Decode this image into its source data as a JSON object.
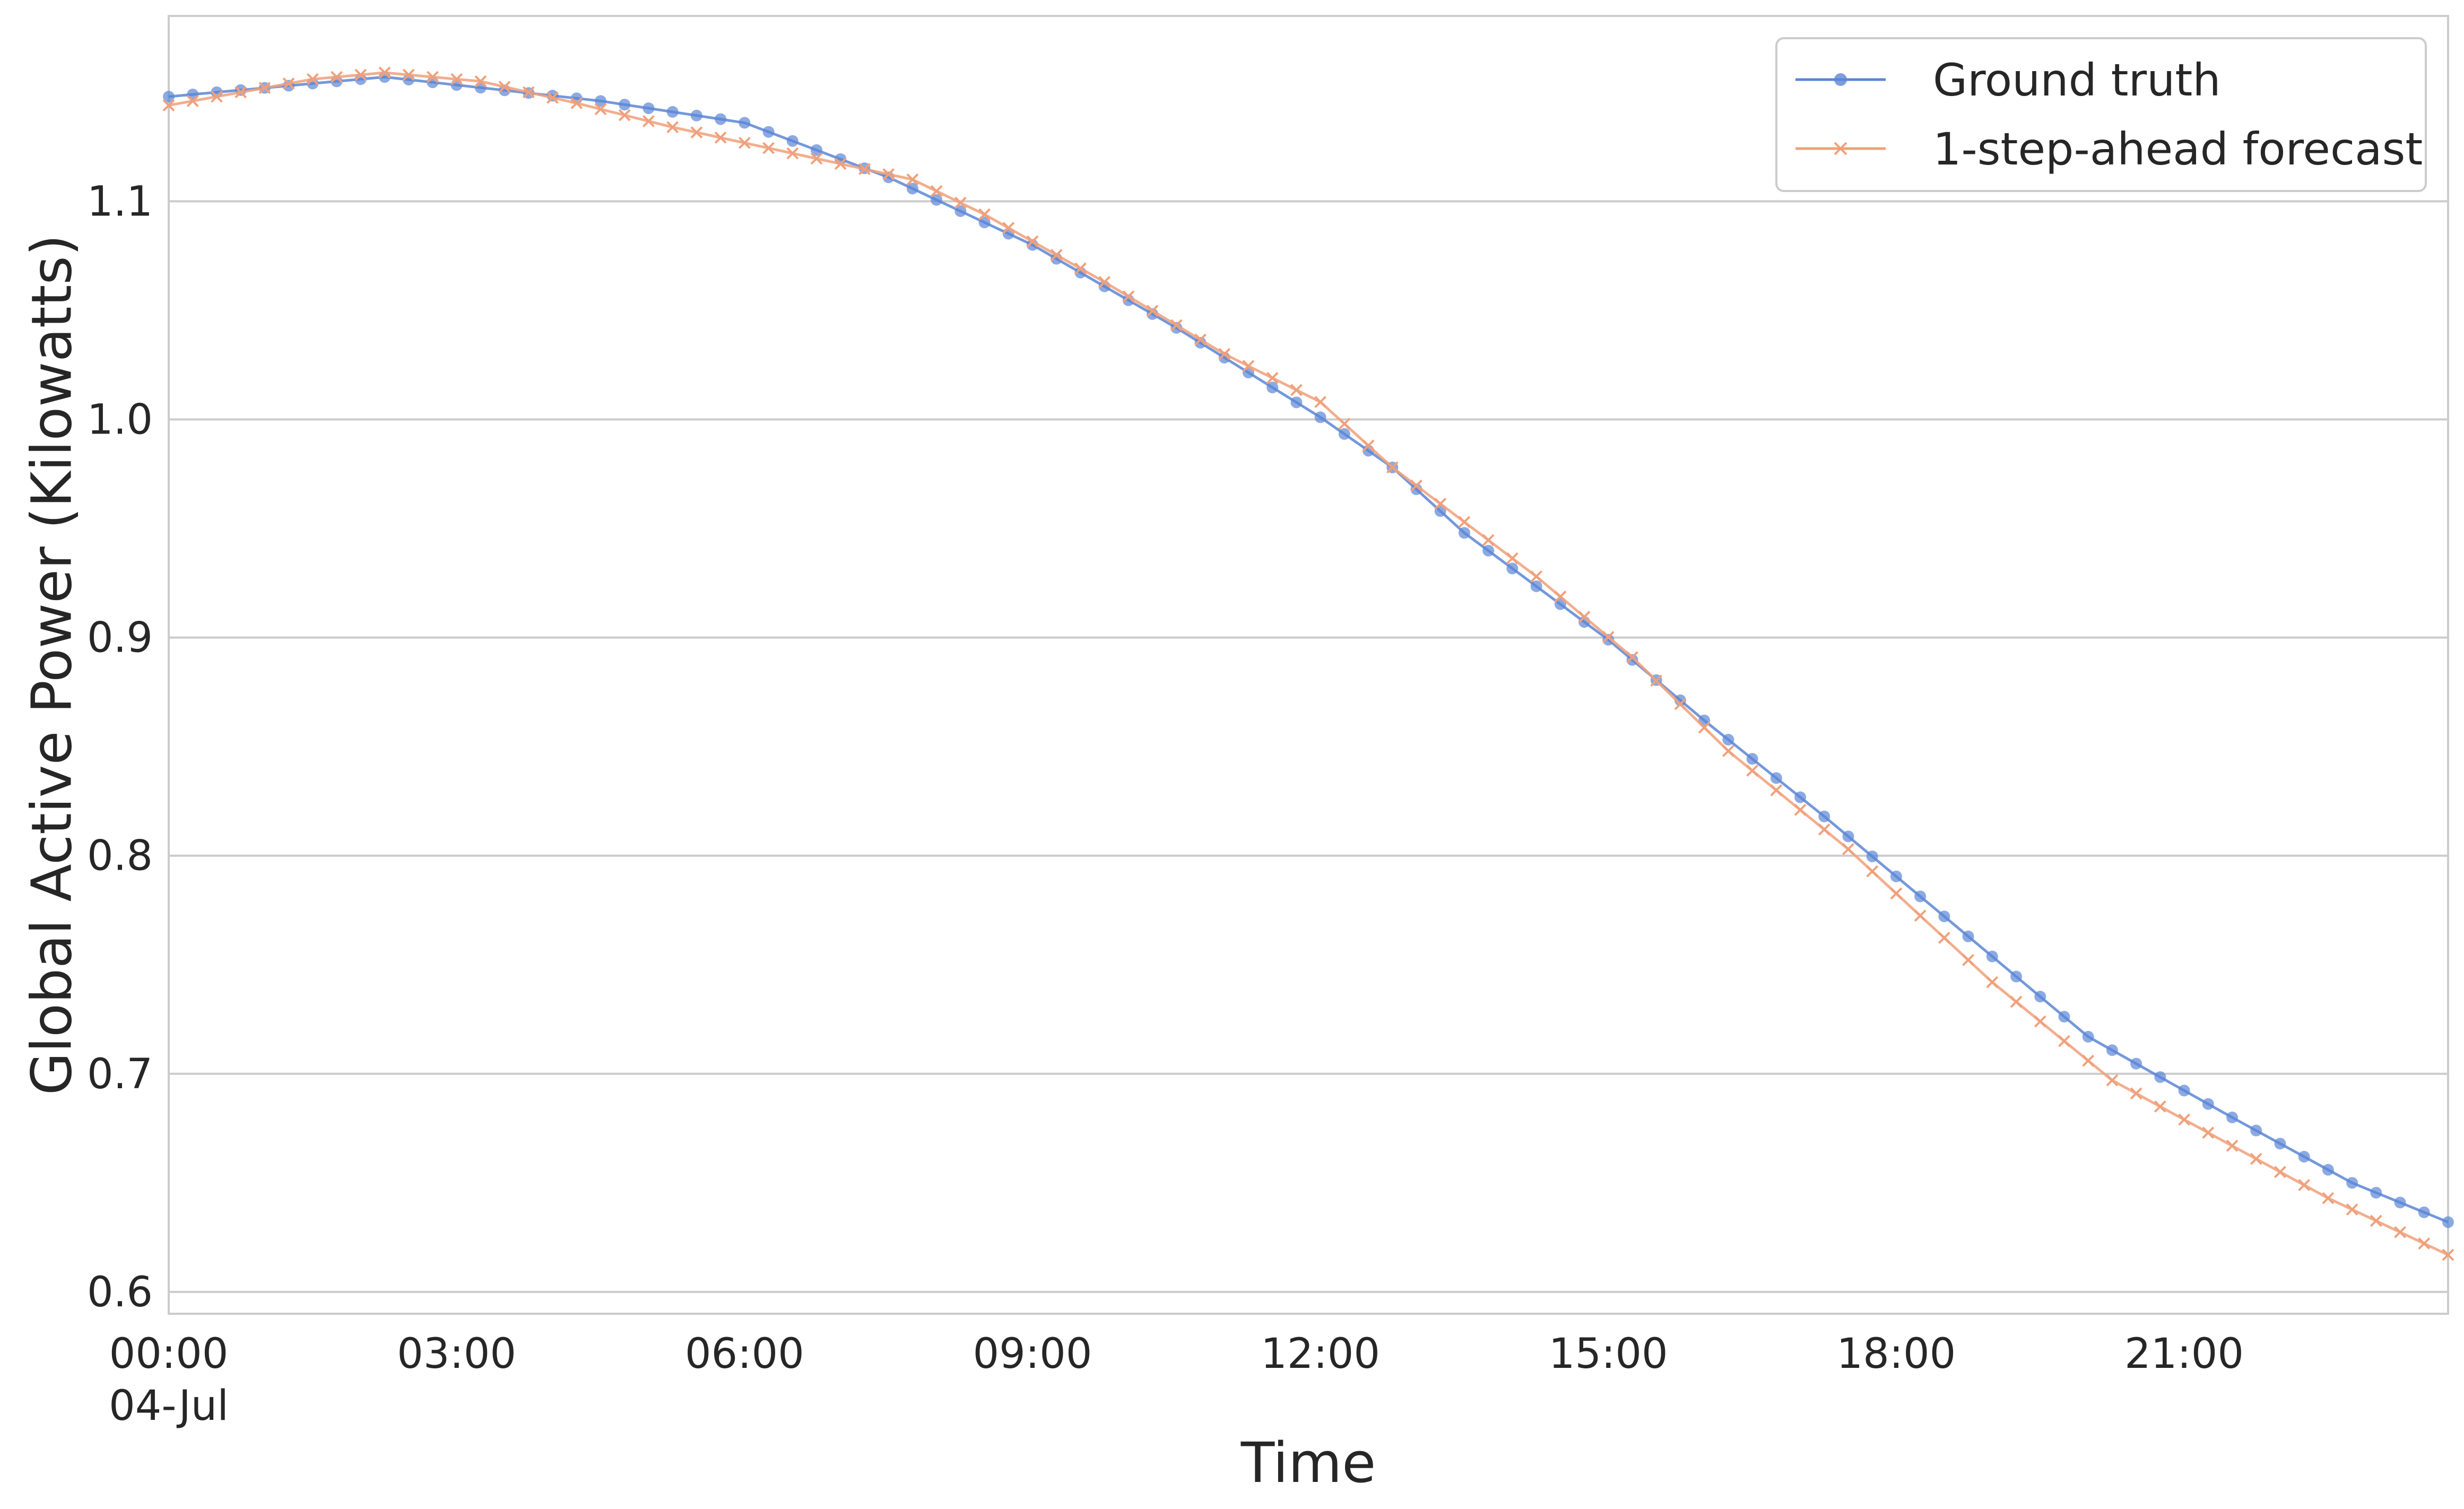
{
  "chart_data": {
    "type": "line",
    "title": "",
    "xlabel": "Time",
    "ylabel": "Global Active Power (Kilowatts)",
    "xlim": [
      0,
      23.75
    ],
    "ylim": [
      0.59,
      1.185
    ],
    "grid": "horizontal",
    "legend_position": "top-right",
    "x_ticks": [
      {
        "value": 0,
        "label": "00:00",
        "sublabel": "04-Jul"
      },
      {
        "value": 3,
        "label": "03:00"
      },
      {
        "value": 6,
        "label": "06:00"
      },
      {
        "value": 9,
        "label": "09:00"
      },
      {
        "value": 12,
        "label": "12:00"
      },
      {
        "value": 15,
        "label": "15:00"
      },
      {
        "value": 18,
        "label": "18:00"
      },
      {
        "value": 21,
        "label": "21:00"
      }
    ],
    "y_ticks": [
      {
        "value": 0.6,
        "label": "0.6"
      },
      {
        "value": 0.7,
        "label": "0.7"
      },
      {
        "value": 0.8,
        "label": "0.8"
      },
      {
        "value": 0.9,
        "label": "0.9"
      },
      {
        "value": 1.0,
        "label": "1.0"
      },
      {
        "value": 1.1,
        "label": "1.1"
      }
    ],
    "series": [
      {
        "name": "Ground truth",
        "color": "#5b86d6",
        "marker": "circle",
        "points": [
          [
            0,
            1.148
          ],
          [
            2.25,
            1.157
          ],
          [
            4.5,
            1.146
          ],
          [
            6,
            1.136
          ],
          [
            7.5,
            1.111
          ],
          [
            9,
            1.08
          ],
          [
            10.5,
            1.042
          ],
          [
            12,
            1.001
          ],
          [
            12.75,
            0.978
          ],
          [
            13.5,
            0.948
          ],
          [
            15,
            0.899
          ],
          [
            16,
            0.862
          ],
          [
            17.25,
            0.818
          ],
          [
            18.75,
            0.763
          ],
          [
            20,
            0.717
          ],
          [
            21.5,
            0.68
          ],
          [
            22.75,
            0.65
          ],
          [
            23.75,
            0.632
          ]
        ]
      },
      {
        "name": "1-step-ahead forecast",
        "color": "#f0a07a",
        "marker": "x",
        "points": [
          [
            0,
            1.144
          ],
          [
            1.5,
            1.156
          ],
          [
            2.25,
            1.159
          ],
          [
            3.25,
            1.155
          ],
          [
            4.25,
            1.145
          ],
          [
            5.25,
            1.134
          ],
          [
            6.5,
            1.122
          ],
          [
            7.75,
            1.11
          ],
          [
            8.5,
            1.094
          ],
          [
            9.75,
            1.063
          ],
          [
            11,
            1.03
          ],
          [
            12,
            1.008
          ],
          [
            12.75,
            0.978
          ],
          [
            13.5,
            0.953
          ],
          [
            14.25,
            0.928
          ],
          [
            15.25,
            0.891
          ],
          [
            16.25,
            0.848
          ],
          [
            17.5,
            0.803
          ],
          [
            19,
            0.742
          ],
          [
            20.25,
            0.697
          ],
          [
            21.5,
            0.667
          ],
          [
            22.5,
            0.643
          ],
          [
            23.75,
            0.617
          ]
        ]
      }
    ]
  }
}
